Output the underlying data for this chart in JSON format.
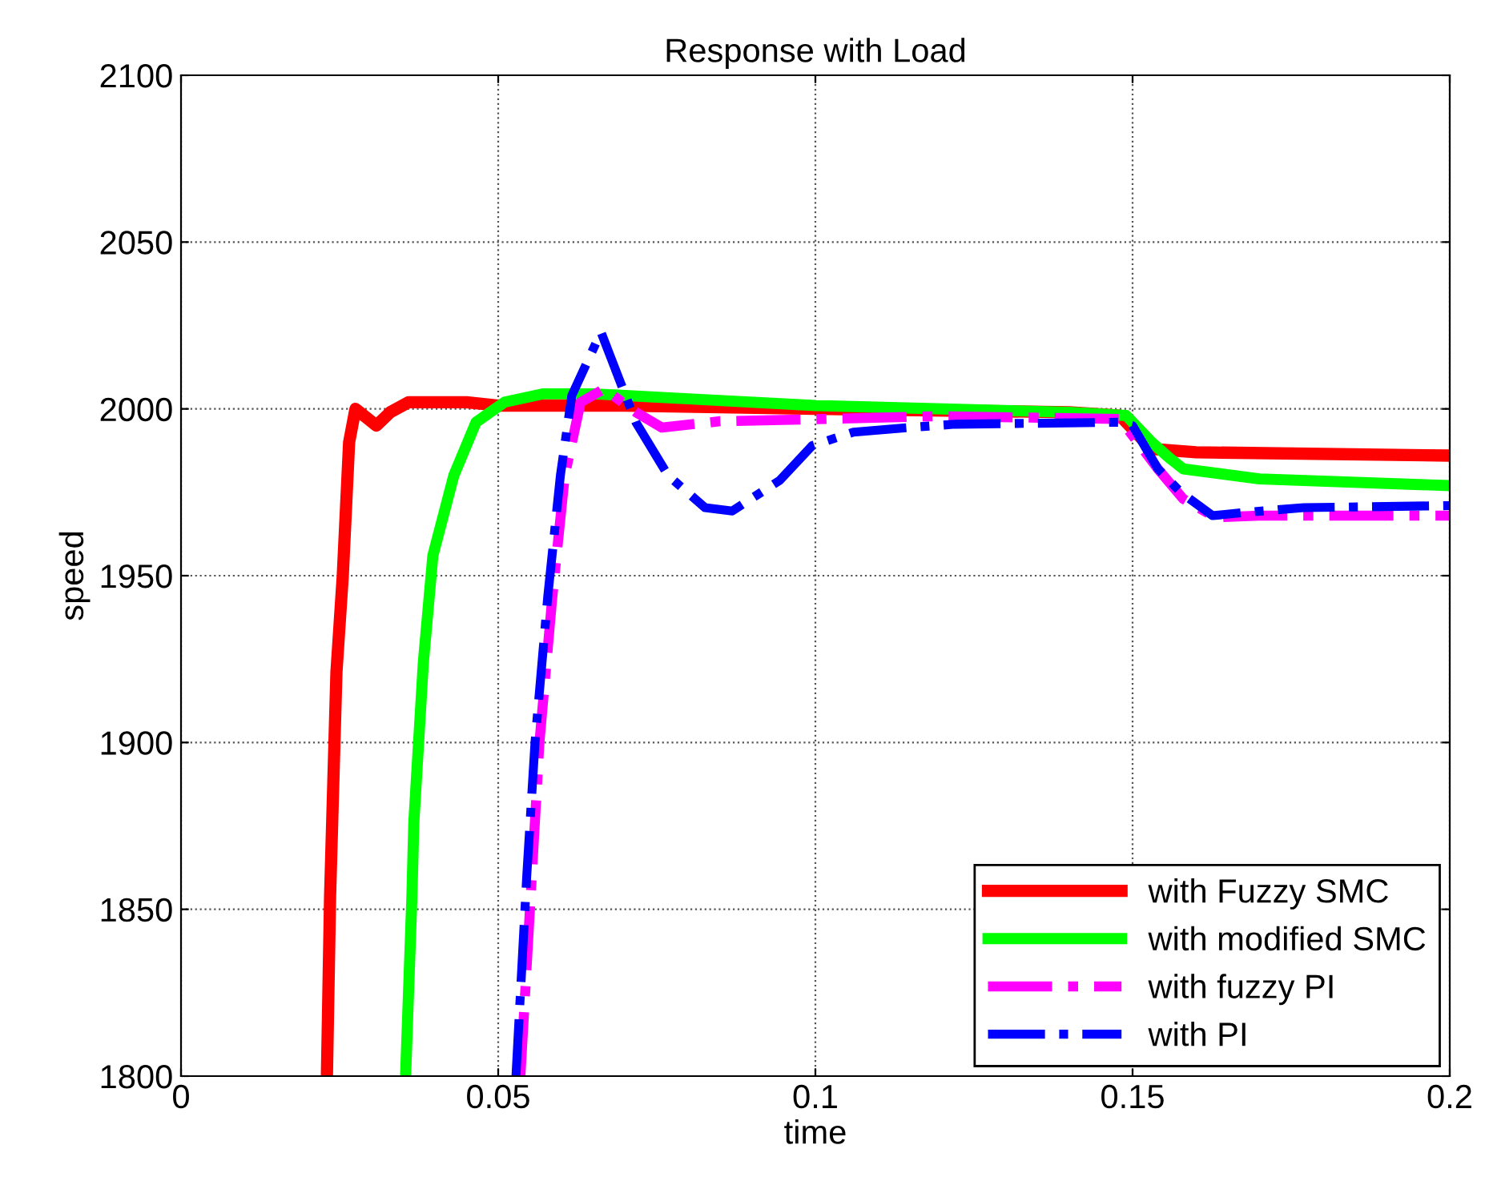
{
  "chart_data": {
    "type": "line",
    "title": "Response with Load",
    "xlabel": "time",
    "ylabel": "speed",
    "xlim": [
      0,
      0.2
    ],
    "xticks": [
      0,
      0.05,
      0.1,
      0.15,
      0.2
    ],
    "ylim": [
      1800,
      2100
    ],
    "yticks": [
      1800,
      1850,
      1900,
      1950,
      2000,
      2050,
      2100
    ],
    "grid": true,
    "legend": "bottom right",
    "series": [
      {
        "name": "with Fuzzy SMC",
        "color": "#ff0000",
        "line_style": "solid",
        "x": [
          0.023,
          0.0235,
          0.0245,
          0.0255,
          0.0265,
          0.0275,
          0.0295,
          0.0308,
          0.033,
          0.0359,
          0.045,
          0.05,
          0.07,
          0.1,
          0.14,
          0.148,
          0.153,
          0.16,
          0.2
        ],
        "values": [
          1800,
          1854,
          1921,
          1950,
          1990,
          2000,
          1997,
          1995,
          1999,
          2002,
          2002,
          2001,
          2001,
          2000,
          1999,
          1998,
          1988,
          1987,
          1986
        ]
      },
      {
        "name": "with modified SMC",
        "color": "#00ff00",
        "line_style": "solid",
        "x": [
          0.0354,
          0.0364,
          0.0367,
          0.0382,
          0.0397,
          0.043,
          0.0465,
          0.051,
          0.057,
          0.065,
          0.08,
          0.1,
          0.14,
          0.149,
          0.153,
          0.156,
          0.158,
          0.17,
          0.2
        ],
        "values": [
          1800,
          1854,
          1876,
          1924,
          1956,
          1980,
          1996,
          2002,
          2004.5,
          2004.5,
          2003,
          2001,
          1999,
          1998,
          1990,
          1985,
          1982,
          1979,
          1977
        ]
      },
      {
        "name": "with fuzzy PI",
        "color": "#ff00ff",
        "line_style": "dashdot",
        "x": [
          0.0535,
          0.0553,
          0.0565,
          0.0585,
          0.0605,
          0.063,
          0.0667,
          0.0717,
          0.0758,
          0.085,
          0.098,
          0.119,
          0.148,
          0.154,
          0.158,
          0.163,
          0.17,
          0.2
        ],
        "values": [
          1800,
          1860,
          1900,
          1943,
          1980,
          2002,
          2006,
          1999,
          1994.4,
          1996.3,
          1996.8,
          1997.8,
          1997,
          1982,
          1973,
          1967.5,
          1968,
          1968
        ]
      },
      {
        "name": "with PI",
        "color": "#0000ff",
        "line_style": "dashdot",
        "x": [
          0.0528,
          0.0545,
          0.0558,
          0.0578,
          0.0598,
          0.0616,
          0.0662,
          0.0717,
          0.0768,
          0.0826,
          0.0869,
          0.0944,
          0.0995,
          0.106,
          0.1146,
          0.122,
          0.148,
          0.15,
          0.154,
          0.1576,
          0.1626,
          0.168,
          0.177,
          0.2
        ],
        "values": [
          1800,
          1860,
          1900,
          1943.5,
          1980,
          2004,
          2023,
          1996,
          1980,
          1970.4,
          1969.4,
          1978.6,
          1989,
          1993,
          1994.4,
          1995.4,
          1996,
          1995,
          1982,
          1975,
          1968,
          1969,
          1970.4,
          1971
        ]
      }
    ]
  }
}
